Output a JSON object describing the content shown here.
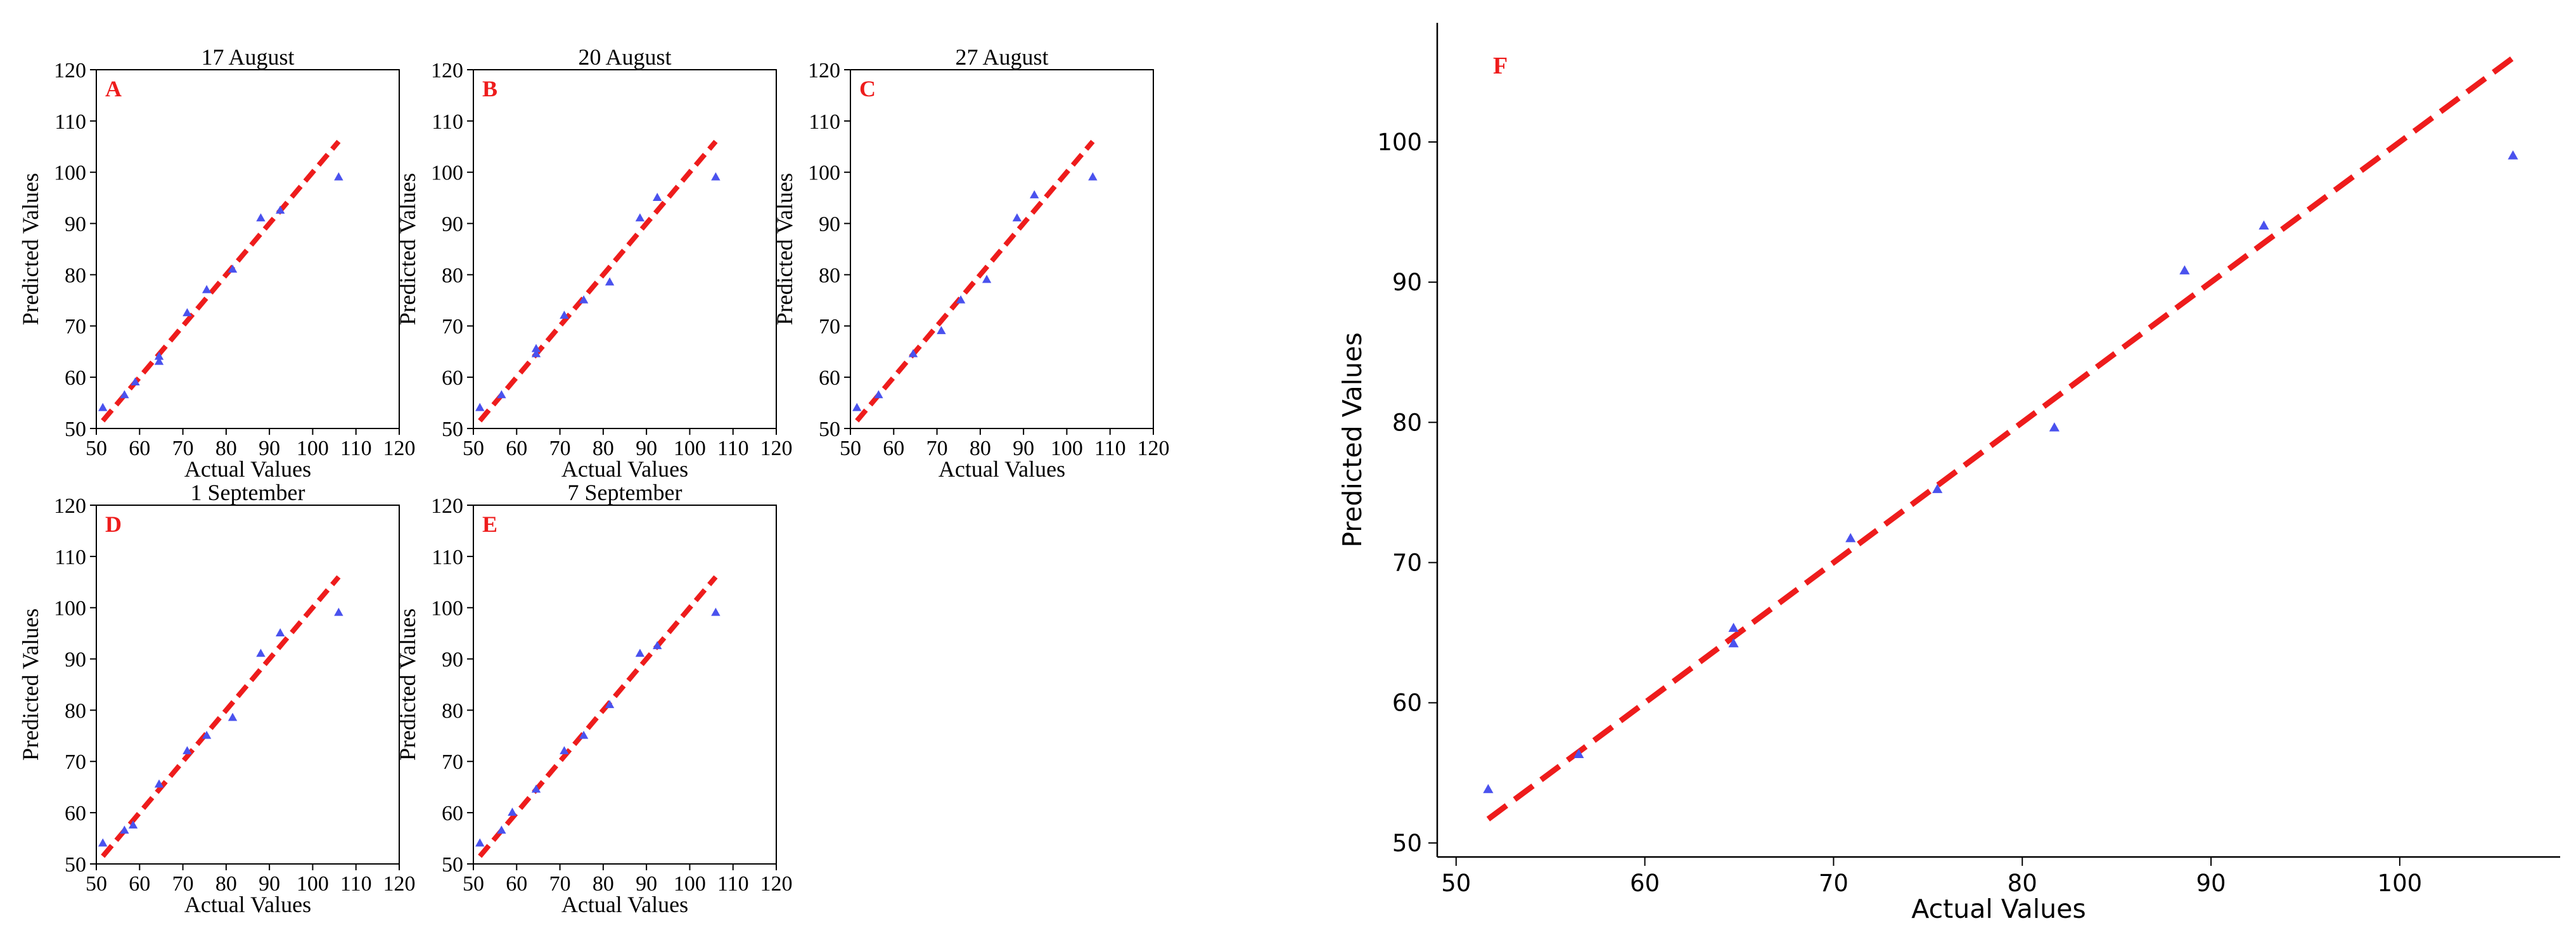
{
  "chart_data": [
    {
      "panel": "A",
      "title": "17 August",
      "type": "scatter",
      "xlabel": "Actual Values",
      "ylabel": "Predicted Values",
      "xlim": [
        50,
        120
      ],
      "ylim": [
        50,
        120
      ],
      "xticks": [
        50,
        60,
        70,
        80,
        90,
        100,
        110,
        120
      ],
      "yticks": [
        50,
        60,
        70,
        80,
        90,
        100,
        110,
        120
      ],
      "points": [
        [
          51.5,
          54
        ],
        [
          56.5,
          56.5
        ],
        [
          59,
          59
        ],
        [
          64.5,
          63
        ],
        [
          64.5,
          64
        ],
        [
          71,
          72.5
        ],
        [
          75.5,
          77
        ],
        [
          81.5,
          81
        ],
        [
          88,
          91
        ],
        [
          92.5,
          92.5
        ],
        [
          106,
          99
        ]
      ],
      "line": [
        [
          51.5,
          51.5
        ],
        [
          106,
          106
        ]
      ]
    },
    {
      "panel": "B",
      "title": "20 August",
      "type": "scatter",
      "xlabel": "Actual Values",
      "ylabel": "Predicted Values",
      "xlim": [
        50,
        120
      ],
      "ylim": [
        50,
        120
      ],
      "xticks": [
        50,
        60,
        70,
        80,
        90,
        100,
        110,
        120
      ],
      "yticks": [
        50,
        60,
        70,
        80,
        90,
        100,
        110,
        120
      ],
      "points": [
        [
          51.5,
          54
        ],
        [
          56.5,
          56.5
        ],
        [
          64.5,
          64.5
        ],
        [
          64.5,
          65.5
        ],
        [
          71,
          72
        ],
        [
          75.5,
          75
        ],
        [
          81.5,
          78.5
        ],
        [
          88.5,
          91
        ],
        [
          92.5,
          95
        ],
        [
          106,
          99
        ]
      ],
      "line": [
        [
          51.5,
          51.5
        ],
        [
          106,
          106
        ]
      ]
    },
    {
      "panel": "C",
      "title": "27 August",
      "type": "scatter",
      "xlabel": "Actual Values",
      "ylabel": "Predicted Values",
      "xlim": [
        50,
        120
      ],
      "ylim": [
        50,
        120
      ],
      "xticks": [
        50,
        60,
        70,
        80,
        90,
        100,
        110,
        120
      ],
      "yticks": [
        50,
        60,
        70,
        80,
        90,
        100,
        110,
        120
      ],
      "points": [
        [
          51.5,
          54
        ],
        [
          56.5,
          56.5
        ],
        [
          64.5,
          64.5
        ],
        [
          71,
          69
        ],
        [
          75.5,
          75
        ],
        [
          81.5,
          79
        ],
        [
          88.5,
          91
        ],
        [
          92.5,
          95.5
        ],
        [
          106,
          99
        ]
      ],
      "line": [
        [
          51.5,
          51.5
        ],
        [
          106,
          106
        ]
      ]
    },
    {
      "panel": "D",
      "title": "1 September",
      "type": "scatter",
      "xlabel": "Actual Values",
      "ylabel": "Predicted Values",
      "xlim": [
        50,
        120
      ],
      "ylim": [
        50,
        120
      ],
      "xticks": [
        50,
        60,
        70,
        80,
        90,
        100,
        110,
        120
      ],
      "yticks": [
        50,
        60,
        70,
        80,
        90,
        100,
        110,
        120
      ],
      "points": [
        [
          51.5,
          54
        ],
        [
          56.5,
          56.5
        ],
        [
          58.5,
          57.5
        ],
        [
          64.5,
          65.5
        ],
        [
          71,
          72
        ],
        [
          75.5,
          75
        ],
        [
          81.5,
          78.5
        ],
        [
          88,
          91
        ],
        [
          92.5,
          95
        ],
        [
          106,
          99
        ]
      ],
      "line": [
        [
          51.5,
          51.5
        ],
        [
          106,
          106
        ]
      ]
    },
    {
      "panel": "E",
      "title": "7 September",
      "type": "scatter",
      "xlabel": "Actual Values",
      "ylabel": "Predicted Values",
      "xlim": [
        50,
        120
      ],
      "ylim": [
        50,
        120
      ],
      "xticks": [
        50,
        60,
        70,
        80,
        90,
        100,
        110,
        120
      ],
      "yticks": [
        50,
        60,
        70,
        80,
        90,
        100,
        110,
        120
      ],
      "points": [
        [
          51.5,
          54
        ],
        [
          56.5,
          56.5
        ],
        [
          59,
          60
        ],
        [
          64.5,
          64.5
        ],
        [
          71,
          72
        ],
        [
          75.5,
          75
        ],
        [
          81.5,
          81
        ],
        [
          88.5,
          91
        ],
        [
          92.5,
          92.5
        ],
        [
          106,
          99
        ]
      ],
      "line": [
        [
          51.5,
          51.5
        ],
        [
          106,
          106
        ]
      ]
    },
    {
      "panel": "F",
      "title": "",
      "type": "scatter",
      "xlabel": "Actual Values",
      "ylabel": "Predicted Values",
      "xlim": [
        49,
        108.5
      ],
      "ylim": [
        49,
        108.5
      ],
      "xticks": [
        50,
        60,
        70,
        80,
        90,
        100
      ],
      "yticks": [
        50,
        60,
        70,
        80,
        90,
        100
      ],
      "points": [
        [
          51.7,
          53.8
        ],
        [
          56.5,
          56.3
        ],
        [
          64.7,
          65.3
        ],
        [
          64.7,
          64.2
        ],
        [
          70.9,
          71.7
        ],
        [
          75.5,
          75.2
        ],
        [
          81.7,
          79.6
        ],
        [
          88.6,
          90.8
        ],
        [
          92.8,
          94.0
        ],
        [
          106.0,
          99.0
        ]
      ],
      "line": [
        [
          51.7,
          51.7
        ],
        [
          106.0,
          106.0
        ]
      ]
    }
  ],
  "colors": {
    "points": "#4a52ee",
    "line": "#ee1c1c",
    "panel_label": "#ee1c1c",
    "axis": "#000000"
  }
}
